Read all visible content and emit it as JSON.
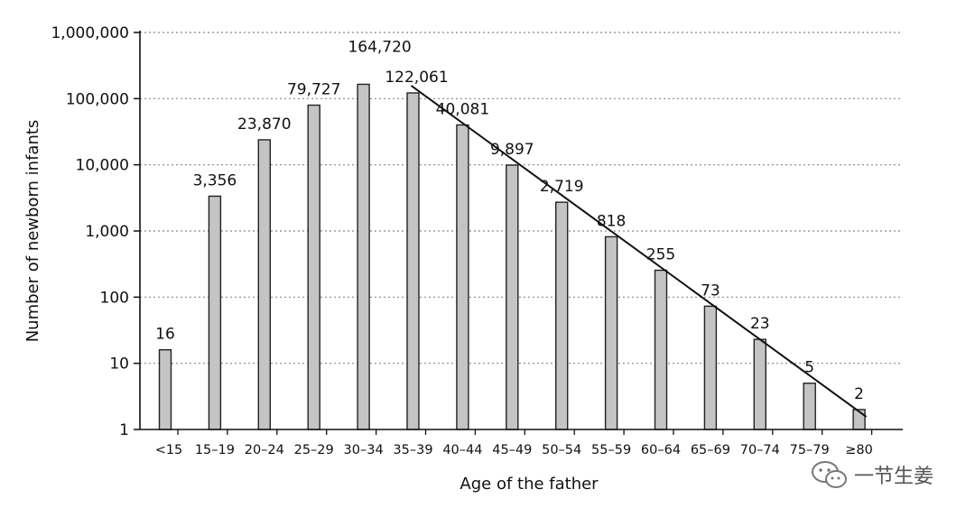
{
  "chart_data": {
    "type": "bar",
    "categories": [
      "<15",
      "15–19",
      "20–24",
      "25–29",
      "30–34",
      "35–39",
      "40–44",
      "45–49",
      "50–54",
      "55–59",
      "60–64",
      "65–69",
      "70–74",
      "75–79",
      "≥80"
    ],
    "values": [
      16,
      3356,
      23870,
      79727,
      164720,
      122061,
      40081,
      9897,
      2719,
      818,
      255,
      73,
      23,
      5,
      2
    ],
    "value_labels": [
      "16",
      "3,356",
      "23,870",
      "79,727",
      "164,720",
      "122,061",
      "40,081",
      "9,897",
      "2,719",
      "818",
      "255",
      "73",
      "23",
      "5",
      "2"
    ],
    "xlabel": "Age of the father",
    "ylabel": "Number of newborn infants",
    "y_scale": "log",
    "ylim": [
      1,
      1000000
    ],
    "y_ticks": [
      1,
      10,
      100,
      1000,
      10000,
      100000,
      1000000
    ],
    "y_tick_labels": [
      "1",
      "10",
      "100",
      "1,000",
      "10,000",
      "100,000",
      "1,000,000"
    ],
    "grid": "horizontal dotted",
    "trend_line": {
      "from_category": "35–39",
      "from_value": 122061,
      "to_category": "≥80",
      "to_value": 2
    },
    "bar_color": "#c4c4c4",
    "bar_edge_color": "#222222"
  },
  "watermark": {
    "text": "一节生姜",
    "icon": "wechat-icon"
  }
}
